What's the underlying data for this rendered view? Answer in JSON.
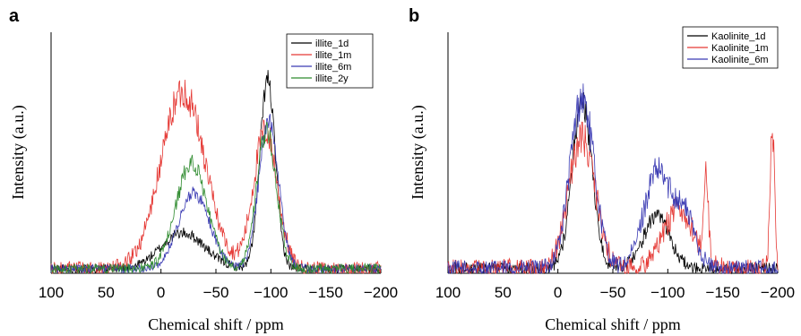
{
  "chart_data": [
    {
      "panel": "a",
      "type": "line",
      "xlabel": "Chemical shift / ppm",
      "ylabel": "Intensity (a.u.)",
      "xlim": [
        100,
        -200
      ],
      "ylim": [
        0,
        1
      ],
      "xticks": [
        100,
        50,
        0,
        -50,
        -100,
        -150,
        -200
      ],
      "legend_position": "top-right",
      "series": [
        {
          "name": "illite_1d",
          "color": "#000000",
          "peaks": [
            [
              -97,
              0.8,
              7
            ],
            [
              -20,
              0.15,
              20
            ]
          ],
          "noise": 0.035,
          "seed": 11
        },
        {
          "name": "illite_1m",
          "color": "#e53935",
          "peaks": [
            [
              -20,
              0.75,
              20
            ],
            [
              -95,
              0.58,
              11
            ]
          ],
          "noise": 0.06,
          "seed": 23
        },
        {
          "name": "illite_6m",
          "color": "#3b3bb3",
          "peaks": [
            [
              -30,
              0.32,
              14
            ],
            [
              -98,
              0.62,
              9
            ]
          ],
          "noise": 0.035,
          "seed": 37
        },
        {
          "name": "illite_2y",
          "color": "#2e8b2e",
          "peaks": [
            [
              -28,
              0.45,
              14
            ],
            [
              -96,
              0.58,
              9
            ]
          ],
          "noise": 0.04,
          "seed": 51
        }
      ]
    },
    {
      "panel": "b",
      "type": "line",
      "xlabel": "Chemical shift / ppm",
      "ylabel": "Intensity (a.u.)",
      "xlim": [
        100,
        -200
      ],
      "ylim": [
        0,
        1
      ],
      "xticks": [
        100,
        50,
        0,
        -50,
        -100,
        -150,
        -200
      ],
      "legend_position": "top-right",
      "series": [
        {
          "name": "Kaolinite_1d",
          "color": "#000000",
          "peaks": [
            [
              -22,
              0.7,
              9
            ],
            [
              -90,
              0.22,
              12
            ]
          ],
          "noise": 0.05,
          "seed": 71
        },
        {
          "name": "Kaolinite_1m",
          "color": "#e53935",
          "peaks": [
            [
              -22,
              0.55,
              12
            ],
            [
              -110,
              0.25,
              14
            ],
            [
              -135,
              0.35,
              2
            ],
            [
              -195,
              0.6,
              2
            ]
          ],
          "noise": 0.08,
          "seed": 83
        },
        {
          "name": "Kaolinite_6m",
          "color": "#3b3bb3",
          "peaks": [
            [
              -22,
              0.72,
              11
            ],
            [
              -90,
              0.4,
              12
            ],
            [
              -115,
              0.22,
              10
            ]
          ],
          "noise": 0.07,
          "seed": 97
        }
      ]
    }
  ]
}
